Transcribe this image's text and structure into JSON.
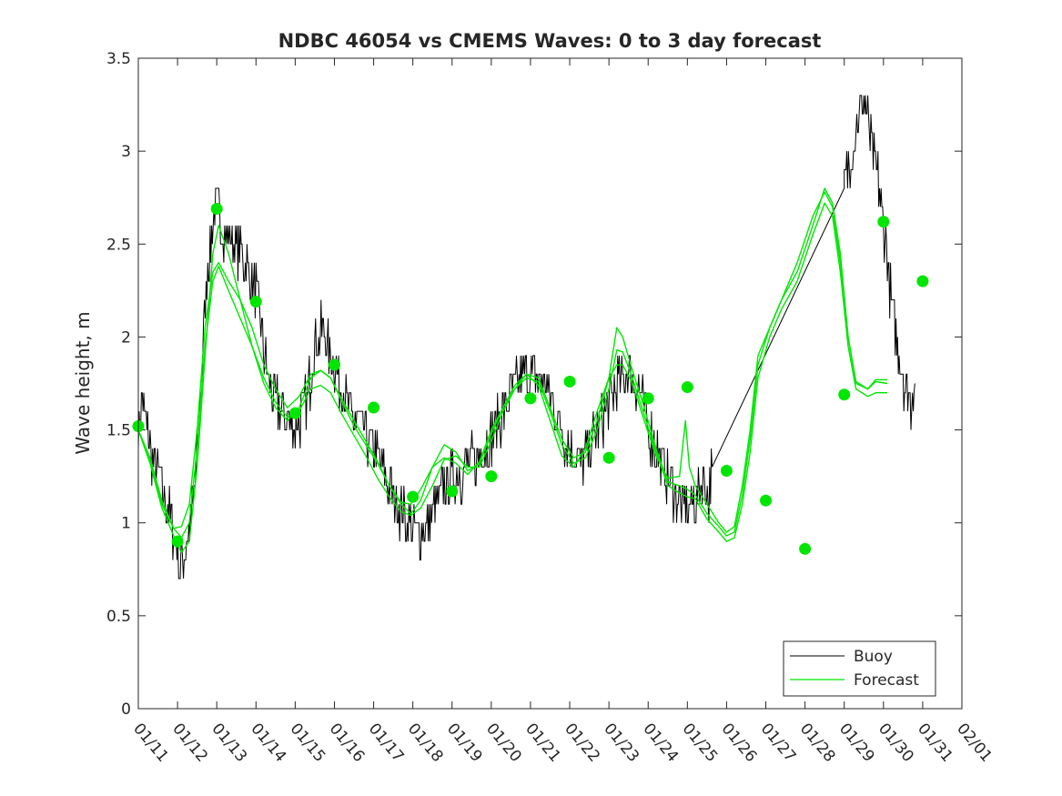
{
  "chart_data": {
    "type": "line",
    "title": "NDBC 46054 vs CMEMS Waves: 0 to 3 day forecast",
    "xlabel": "",
    "ylabel": "Wave height, m",
    "xlim": [
      0,
      21
    ],
    "ylim": [
      0,
      3.5
    ],
    "x_tick_labels": [
      "01/11",
      "01/12",
      "01/13",
      "01/14",
      "01/15",
      "01/16",
      "01/17",
      "01/18",
      "01/19",
      "01/20",
      "01/21",
      "01/22",
      "01/23",
      "01/24",
      "01/25",
      "01/26",
      "01/27",
      "01/28",
      "01/29",
      "01/30",
      "01/31",
      "02/01"
    ],
    "y_ticks": [
      0,
      0.5,
      1,
      1.5,
      2,
      2.5,
      3,
      3.5
    ],
    "y_tick_labels": [
      "0",
      "0.5",
      "1",
      "1.5",
      "2",
      "2.5",
      "3",
      "3.5"
    ],
    "legend": {
      "position": "bottom-right",
      "entries": [
        {
          "label": "Buoy",
          "color": "#000000"
        },
        {
          "label": "Forecast",
          "color": "#00e600"
        }
      ]
    },
    "series": [
      {
        "name": "Buoy",
        "color": "#000000",
        "noise": 0.14,
        "points": [
          [
            0,
            1.5
          ],
          [
            0.1,
            1.65
          ],
          [
            0.3,
            1.4
          ],
          [
            0.6,
            1.2
          ],
          [
            0.9,
            0.95
          ],
          [
            1.05,
            0.78
          ],
          [
            1.25,
            0.9
          ],
          [
            1.45,
            1.2
          ],
          [
            1.6,
            1.7
          ],
          [
            1.75,
            2.35
          ],
          [
            1.95,
            2.7
          ],
          [
            2.2,
            2.55
          ],
          [
            2.5,
            2.5
          ],
          [
            2.75,
            2.4
          ],
          [
            3.0,
            2.25
          ],
          [
            3.25,
            1.85
          ],
          [
            3.5,
            1.65
          ],
          [
            3.8,
            1.55
          ],
          [
            4.0,
            1.5
          ],
          [
            4.3,
            1.65
          ],
          [
            4.5,
            1.95
          ],
          [
            4.7,
            2.05
          ],
          [
            4.9,
            1.9
          ],
          [
            5.15,
            1.75
          ],
          [
            5.4,
            1.6
          ],
          [
            5.7,
            1.5
          ],
          [
            6.0,
            1.4
          ],
          [
            6.3,
            1.25
          ],
          [
            6.6,
            1.1
          ],
          [
            6.9,
            1.0
          ],
          [
            7.2,
            0.92
          ],
          [
            7.5,
            1.05
          ],
          [
            7.8,
            1.2
          ],
          [
            8.1,
            1.25
          ],
          [
            8.4,
            1.3
          ],
          [
            8.8,
            1.38
          ],
          [
            9.2,
            1.55
          ],
          [
            9.6,
            1.75
          ],
          [
            10.0,
            1.8
          ],
          [
            10.4,
            1.75
          ],
          [
            10.7,
            1.55
          ],
          [
            11.0,
            1.4
          ],
          [
            11.3,
            1.3
          ],
          [
            11.6,
            1.45
          ],
          [
            11.9,
            1.6
          ],
          [
            12.2,
            1.75
          ],
          [
            12.5,
            1.8
          ],
          [
            12.8,
            1.7
          ],
          [
            13.0,
            1.5
          ],
          [
            13.3,
            1.35
          ],
          [
            13.6,
            1.2
          ],
          [
            13.85,
            1.1
          ],
          [
            14.0,
            1.08
          ],
          [
            14.2,
            1.12
          ],
          [
            14.4,
            1.25
          ],
          [
            14.55,
            1.15
          ],
          [
            14.65,
            1.3
          ],
          [
            18.0,
            2.8
          ],
          [
            18.3,
            3.1
          ],
          [
            18.5,
            3.3
          ],
          [
            18.7,
            3.0
          ],
          [
            18.9,
            2.8
          ],
          [
            19.1,
            2.4
          ],
          [
            19.3,
            2.0
          ],
          [
            19.5,
            1.8
          ],
          [
            19.7,
            1.65
          ],
          [
            19.8,
            1.75
          ]
        ]
      },
      {
        "name": "Forecast run 1",
        "color": "#00e600",
        "points": [
          [
            0,
            1.5
          ],
          [
            0.3,
            1.35
          ],
          [
            0.6,
            1.12
          ],
          [
            0.9,
            0.97
          ],
          [
            1.1,
            0.98
          ],
          [
            1.3,
            1.1
          ],
          [
            1.5,
            1.5
          ],
          [
            1.7,
            2.05
          ],
          [
            1.9,
            2.35
          ],
          [
            2.05,
            2.4
          ],
          [
            2.3,
            2.3
          ],
          [
            2.6,
            2.2
          ],
          [
            2.9,
            2.05
          ],
          [
            3.2,
            1.85
          ],
          [
            3.5,
            1.72
          ],
          [
            3.8,
            1.62
          ],
          [
            4.1,
            1.68
          ],
          [
            4.4,
            1.8
          ],
          [
            4.65,
            1.82
          ],
          [
            4.9,
            1.78
          ],
          [
            5.2,
            1.65
          ],
          [
            5.5,
            1.52
          ],
          [
            5.8,
            1.42
          ],
          [
            6.1,
            1.32
          ],
          [
            6.4,
            1.2
          ],
          [
            6.7,
            1.1
          ],
          [
            6.95,
            1.05
          ],
          [
            7.2,
            1.12
          ],
          [
            7.5,
            1.3
          ],
          [
            7.8,
            1.42
          ],
          [
            8.1,
            1.38
          ],
          [
            8.4,
            1.28
          ],
          [
            8.7,
            1.32
          ],
          [
            9.0,
            1.48
          ],
          [
            9.3,
            1.62
          ],
          [
            9.6,
            1.72
          ],
          [
            9.9,
            1.8
          ],
          [
            10.2,
            1.78
          ],
          [
            10.5,
            1.62
          ],
          [
            10.8,
            1.45
          ],
          [
            11.1,
            1.35
          ],
          [
            11.4,
            1.38
          ],
          [
            11.7,
            1.55
          ],
          [
            12.0,
            1.78
          ],
          [
            12.2,
            2.05
          ],
          [
            12.35,
            2.0
          ],
          [
            12.6,
            1.82
          ],
          [
            12.9,
            1.62
          ],
          [
            13.2,
            1.4
          ],
          [
            13.5,
            1.22
          ],
          [
            13.8,
            1.2
          ],
          [
            14.0,
            1.18
          ],
          [
            14.2,
            1.15
          ],
          [
            14.5,
            1.05
          ],
          [
            14.8,
            0.98
          ],
          [
            15.0,
            0.93
          ],
          [
            15.2,
            0.95
          ],
          [
            15.4,
            1.15
          ],
          [
            15.6,
            1.45
          ],
          [
            15.8,
            1.85
          ],
          [
            16.1,
            2.05
          ],
          [
            16.4,
            2.2
          ],
          [
            16.8,
            2.35
          ],
          [
            17.2,
            2.6
          ],
          [
            17.5,
            2.8
          ],
          [
            17.7,
            2.72
          ],
          [
            17.9,
            2.45
          ],
          [
            18.1,
            2.0
          ],
          [
            18.3,
            1.75
          ],
          [
            18.6,
            1.72
          ],
          [
            18.8,
            1.77
          ],
          [
            19.1,
            1.77
          ]
        ]
      },
      {
        "name": "Forecast run 2",
        "color": "#00e600",
        "points": [
          [
            0,
            1.5
          ],
          [
            0.3,
            1.33
          ],
          [
            0.6,
            1.1
          ],
          [
            0.9,
            0.97
          ],
          [
            1.1,
            0.92
          ],
          [
            1.3,
            1.0
          ],
          [
            1.5,
            1.4
          ],
          [
            1.7,
            1.95
          ],
          [
            1.9,
            2.3
          ],
          [
            2.05,
            2.38
          ],
          [
            2.3,
            2.25
          ],
          [
            2.6,
            2.1
          ],
          [
            2.9,
            1.95
          ],
          [
            3.2,
            1.78
          ],
          [
            3.5,
            1.65
          ],
          [
            3.8,
            1.57
          ],
          [
            4.1,
            1.6
          ],
          [
            4.4,
            1.72
          ],
          [
            4.65,
            1.74
          ],
          [
            4.9,
            1.7
          ],
          [
            5.2,
            1.58
          ],
          [
            5.5,
            1.47
          ],
          [
            5.8,
            1.36
          ],
          [
            6.1,
            1.24
          ],
          [
            6.4,
            1.14
          ],
          [
            6.7,
            1.06
          ],
          [
            6.95,
            1.04
          ],
          [
            7.2,
            1.08
          ],
          [
            7.5,
            1.2
          ],
          [
            7.8,
            1.34
          ],
          [
            8.1,
            1.36
          ],
          [
            8.4,
            1.3
          ],
          [
            8.7,
            1.3
          ],
          [
            9.0,
            1.44
          ],
          [
            9.3,
            1.6
          ],
          [
            9.6,
            1.72
          ],
          [
            9.9,
            1.78
          ],
          [
            10.2,
            1.76
          ],
          [
            10.5,
            1.6
          ],
          [
            10.8,
            1.42
          ],
          [
            11.1,
            1.32
          ],
          [
            11.4,
            1.35
          ],
          [
            11.7,
            1.5
          ],
          [
            12.0,
            1.72
          ],
          [
            12.2,
            1.93
          ],
          [
            12.35,
            1.92
          ],
          [
            12.6,
            1.78
          ],
          [
            12.9,
            1.58
          ],
          [
            13.2,
            1.38
          ],
          [
            13.5,
            1.2
          ],
          [
            13.8,
            1.16
          ],
          [
            14.0,
            1.14
          ],
          [
            14.2,
            1.13
          ],
          [
            14.5,
            1.02
          ],
          [
            14.8,
            0.95
          ],
          [
            15.0,
            0.9
          ],
          [
            15.2,
            0.92
          ],
          [
            15.4,
            1.1
          ],
          [
            15.6,
            1.38
          ],
          [
            15.8,
            1.78
          ],
          [
            16.1,
            2.0
          ],
          [
            16.4,
            2.15
          ],
          [
            16.8,
            2.3
          ],
          [
            17.2,
            2.55
          ],
          [
            17.5,
            2.72
          ],
          [
            17.7,
            2.65
          ],
          [
            17.9,
            2.35
          ],
          [
            18.1,
            1.95
          ],
          [
            18.3,
            1.72
          ],
          [
            18.6,
            1.68
          ],
          [
            18.8,
            1.7
          ],
          [
            19.1,
            1.7
          ]
        ]
      },
      {
        "name": "Forecast run 3",
        "color": "#00e600",
        "points": [
          [
            0,
            1.5
          ],
          [
            0.3,
            1.32
          ],
          [
            0.6,
            1.08
          ],
          [
            0.9,
            0.93
          ],
          [
            1.1,
            0.84
          ],
          [
            1.3,
            0.9
          ],
          [
            1.5,
            1.3
          ],
          [
            1.7,
            1.9
          ],
          [
            1.9,
            2.45
          ],
          [
            2.05,
            2.6
          ],
          [
            2.3,
            2.45
          ],
          [
            2.6,
            2.2
          ],
          [
            2.9,
            1.95
          ],
          [
            3.2,
            1.75
          ],
          [
            3.5,
            1.62
          ],
          [
            3.8,
            1.55
          ],
          [
            4.1,
            1.62
          ],
          [
            4.4,
            1.78
          ],
          [
            4.65,
            1.82
          ],
          [
            4.9,
            1.78
          ],
          [
            5.2,
            1.66
          ],
          [
            5.5,
            1.55
          ],
          [
            5.8,
            1.44
          ],
          [
            6.1,
            1.33
          ],
          [
            6.4,
            1.2
          ],
          [
            6.7,
            1.11
          ],
          [
            6.95,
            1.1
          ],
          [
            7.2,
            1.18
          ],
          [
            7.5,
            1.3
          ],
          [
            7.8,
            1.35
          ],
          [
            8.1,
            1.32
          ],
          [
            8.4,
            1.26
          ],
          [
            8.7,
            1.33
          ],
          [
            9.0,
            1.5
          ],
          [
            9.3,
            1.62
          ],
          [
            9.6,
            1.74
          ],
          [
            9.9,
            1.8
          ],
          [
            10.2,
            1.74
          ],
          [
            10.5,
            1.55
          ],
          [
            10.8,
            1.36
          ],
          [
            11.1,
            1.3
          ],
          [
            11.4,
            1.4
          ],
          [
            11.7,
            1.6
          ],
          [
            12.0,
            1.78
          ],
          [
            12.2,
            1.85
          ],
          [
            12.35,
            1.85
          ],
          [
            12.6,
            1.75
          ],
          [
            12.9,
            1.55
          ],
          [
            13.2,
            1.36
          ],
          [
            13.5,
            1.24
          ],
          [
            13.8,
            1.25
          ],
          [
            13.95,
            1.55
          ],
          [
            14.05,
            1.3
          ],
          [
            14.2,
            1.2
          ],
          [
            14.5,
            1.1
          ],
          [
            14.8,
            1.0
          ],
          [
            15.0,
            0.95
          ],
          [
            15.2,
            0.98
          ],
          [
            15.4,
            1.2
          ],
          [
            15.6,
            1.5
          ],
          [
            15.8,
            1.9
          ],
          [
            16.1,
            2.05
          ],
          [
            16.4,
            2.2
          ],
          [
            16.8,
            2.4
          ],
          [
            17.2,
            2.65
          ],
          [
            17.5,
            2.78
          ],
          [
            17.7,
            2.7
          ],
          [
            17.9,
            2.4
          ],
          [
            18.1,
            2.0
          ],
          [
            18.3,
            1.76
          ],
          [
            18.6,
            1.72
          ],
          [
            18.8,
            1.76
          ],
          [
            19.1,
            1.75
          ]
        ]
      }
    ],
    "analysis_points": {
      "name": "Forecast analysis",
      "color": "#00e600",
      "x": [
        0,
        1,
        2,
        3,
        4,
        5,
        6,
        7,
        8,
        9,
        10,
        11,
        12,
        13,
        14,
        15,
        16,
        17,
        18,
        19,
        20
      ],
      "y": [
        1.52,
        0.9,
        2.69,
        2.19,
        1.59,
        1.85,
        1.62,
        1.14,
        1.17,
        1.25,
        1.67,
        1.76,
        1.35,
        1.67,
        1.73,
        1.28,
        1.12,
        0.86,
        1.69,
        2.62,
        2.3
      ]
    }
  }
}
